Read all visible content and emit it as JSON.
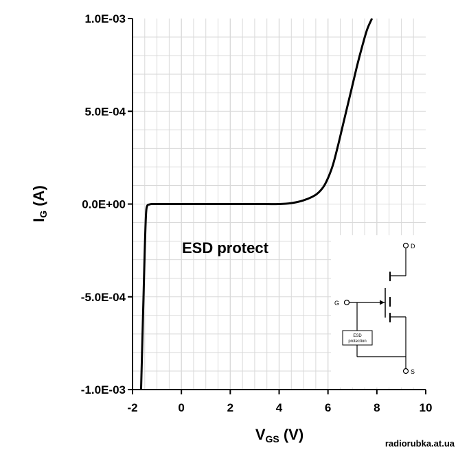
{
  "chart_data": {
    "type": "line",
    "title": "",
    "xlabel": {
      "main": "V",
      "sub": "GS",
      "unit": " (V)"
    },
    "ylabel": {
      "main": "I",
      "sub": "G",
      "unit": " (A)"
    },
    "xlim": [
      -2,
      10
    ],
    "ylim": [
      -0.001,
      0.001
    ],
    "xticks": [
      -2,
      0,
      2,
      4,
      6,
      8,
      10
    ],
    "xtick_labels": [
      "-2",
      "0",
      "2",
      "4",
      "6",
      "8",
      "10"
    ],
    "yticks": [
      0.001,
      0.0005,
      0,
      -0.0005,
      -0.001
    ],
    "ytick_labels": [
      "1.0E-03",
      "5.0E-04",
      "0.0E+00",
      "-5.0E-04",
      "-1.0E-03"
    ],
    "grid": true,
    "legend": "none",
    "line_color": "#000000",
    "grid_color": "#d9d9d9",
    "series": [
      {
        "x": [
          -1.65,
          -1.6,
          -1.55,
          -1.5,
          -1.45,
          -1.4,
          -1.3,
          -1.2,
          -1.0,
          0,
          1,
          2,
          3,
          4,
          4.5,
          5.0,
          5.5,
          5.8,
          6.0,
          6.2,
          6.4,
          6.6,
          6.8,
          7.0,
          7.2,
          7.4,
          7.6,
          7.8
        ],
        "y": [
          -0.001,
          -0.00075,
          -0.0005,
          -0.00025,
          -6e-05,
          -1e-05,
          -2e-06,
          0,
          0,
          0,
          0,
          0,
          0,
          0,
          5e-06,
          2e-05,
          5e-05,
          9e-05,
          0.00014,
          0.00021,
          0.00031,
          0.00042,
          0.00053,
          0.00064,
          0.00075,
          0.00085,
          0.00094,
          0.001
        ]
      }
    ],
    "annotations": [
      {
        "text": "ESD protect"
      }
    ],
    "inset": {
      "labels": {
        "drain": "D",
        "gate": "G",
        "source": "S",
        "esd_box": "ESD protection"
      }
    }
  },
  "watermark": "radiorubka.at.ua"
}
